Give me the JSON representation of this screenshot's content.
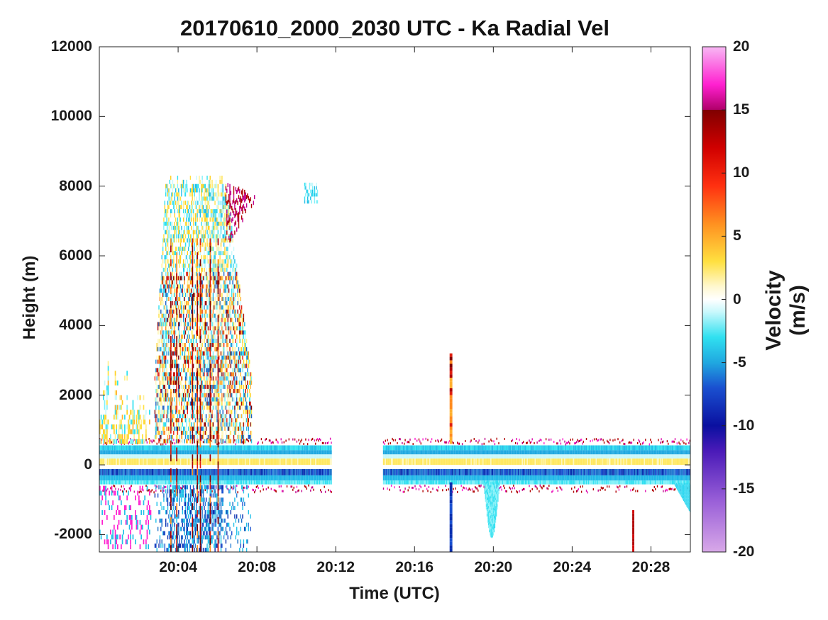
{
  "chart_data": {
    "type": "heatmap",
    "title": "20170610_2000_2030 UTC - Ka Radial Vel",
    "xlabel": "Time (UTC)",
    "ylabel": "Height (m)",
    "x_range_minutes": [
      0,
      30
    ],
    "x_ticks": [
      {
        "label": "20:04",
        "minute": 4
      },
      {
        "label": "20:08",
        "minute": 8
      },
      {
        "label": "20:12",
        "minute": 12
      },
      {
        "label": "20:16",
        "minute": 16
      },
      {
        "label": "20:20",
        "minute": 20
      },
      {
        "label": "20:24",
        "minute": 24
      },
      {
        "label": "20:28",
        "minute": 28
      }
    ],
    "ylim": [
      -2500,
      12000
    ],
    "y_ticks": [
      {
        "label": "12000",
        "value": 12000
      },
      {
        "label": "10000",
        "value": 10000
      },
      {
        "label": "8000",
        "value": 8000
      },
      {
        "label": "6000",
        "value": 6000
      },
      {
        "label": "4000",
        "value": 4000
      },
      {
        "label": "2000",
        "value": 2000
      },
      {
        "label": "0",
        "value": 0
      },
      {
        "label": "-2000",
        "value": -2000
      }
    ],
    "colorbar": {
      "label": "Velocity (m/s)",
      "range": [
        -20,
        20
      ],
      "ticks": [
        {
          "label": "20",
          "value": 20
        },
        {
          "label": "15",
          "value": 15
        },
        {
          "label": "10",
          "value": 10
        },
        {
          "label": "5",
          "value": 5
        },
        {
          "label": "0",
          "value": 0
        },
        {
          "label": "-5",
          "value": -5
        },
        {
          "label": "-10",
          "value": -10
        },
        {
          "label": "-15",
          "value": -15
        },
        {
          "label": "-20",
          "value": -20
        }
      ],
      "stops": [
        {
          "value": -20,
          "color": "#d8a8e8"
        },
        {
          "value": -16,
          "color": "#9a60d8"
        },
        {
          "value": -12,
          "color": "#4a1ab8"
        },
        {
          "value": -10,
          "color": "#0a10a0"
        },
        {
          "value": -7,
          "color": "#1a50d0"
        },
        {
          "value": -5,
          "color": "#20a8e0"
        },
        {
          "value": -3,
          "color": "#30e0f0"
        },
        {
          "value": -1,
          "color": "#c8f8fc"
        },
        {
          "value": 0,
          "color": "#ffffff"
        },
        {
          "value": 1,
          "color": "#fff8d0"
        },
        {
          "value": 3,
          "color": "#ffe040"
        },
        {
          "value": 6,
          "color": "#ff9020"
        },
        {
          "value": 9,
          "color": "#ff3010"
        },
        {
          "value": 12,
          "color": "#d00000"
        },
        {
          "value": 15,
          "color": "#800000"
        },
        {
          "value": 15.01,
          "color": "#b0006a"
        },
        {
          "value": 17,
          "color": "#ff20d0"
        },
        {
          "value": 20,
          "color": "#f8b8f4"
        }
      ]
    },
    "cloud_regions": [
      {
        "name": "surface-clutter-band",
        "minutes": [
          [
            0,
            11.8
          ],
          [
            14.4,
            30
          ]
        ],
        "height_range": [
          -600,
          600
        ]
      },
      {
        "name": "deep-cloud-column",
        "minutes": [
          2.8,
          7.7
        ],
        "height_range": [
          -2500,
          8250
        ]
      },
      {
        "name": "upper-echo-patch",
        "minutes": [
          10.4,
          11.1
        ],
        "height_range": [
          7500,
          8100
        ]
      },
      {
        "name": "narrow-spike",
        "minutes": [
          17.8,
          17.9
        ],
        "height_range": [
          -2500,
          3200
        ]
      },
      {
        "name": "low-fallstreak",
        "minutes": [
          19.5,
          20.3
        ],
        "height_range": [
          -2100,
          0
        ]
      }
    ]
  }
}
